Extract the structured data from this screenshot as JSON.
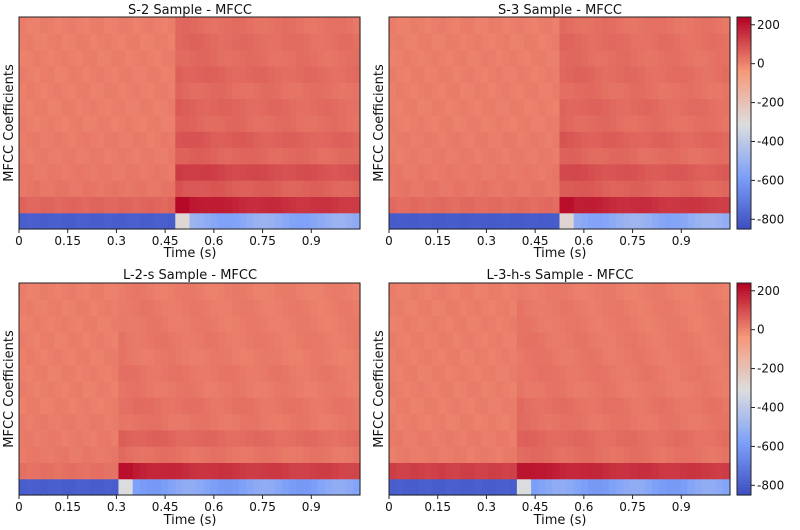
{
  "chart_data": [
    {
      "type": "heatmap",
      "title": "S-2 Sample - MFCC",
      "xlabel": "Time (s)",
      "ylabel": "MFCC Coefficients",
      "xlim": [
        0,
        1.05
      ],
      "xticks": [
        "0",
        "0.15",
        "0.3",
        "0.45",
        "0.6",
        "0.75",
        "0.9"
      ],
      "onset_s": 0.49,
      "rows": 13,
      "pre_onset_values": [
        -790,
        60,
        30,
        25,
        20,
        20,
        15,
        15,
        15,
        15,
        15,
        15,
        15
      ],
      "post_onset_values": [
        -530,
        210,
        90,
        140,
        70,
        90,
        60,
        70,
        55,
        70,
        55,
        60,
        50
      ]
    },
    {
      "type": "heatmap",
      "title": "S-3 Sample - MFCC",
      "xlabel": "Time (s)",
      "ylabel": "MFCC Coefficients",
      "xlim": [
        0,
        1.05
      ],
      "xticks": [
        "0",
        "0.15",
        "0.3",
        "0.45",
        "0.6",
        "0.75",
        "0.9"
      ],
      "onset_s": 0.52,
      "rows": 13,
      "pre_onset_values": [
        -800,
        50,
        30,
        25,
        20,
        20,
        15,
        15,
        15,
        15,
        15,
        15,
        15
      ],
      "post_onset_values": [
        -520,
        200,
        80,
        110,
        60,
        80,
        55,
        65,
        50,
        60,
        50,
        55,
        45
      ]
    },
    {
      "type": "heatmap",
      "title": "L-2-s Sample - MFCC",
      "xlabel": "Time (s)",
      "ylabel": "MFCC Coefficients",
      "xlim": [
        0,
        1.05
      ],
      "xticks": [
        "0",
        "0.15",
        "0.3",
        "0.45",
        "0.6",
        "0.75",
        "0.9"
      ],
      "onset_s": 0.3,
      "rows": 13,
      "pre_onset_values": [
        -790,
        40,
        25,
        20,
        20,
        15,
        15,
        15,
        15,
        15,
        15,
        15,
        15
      ],
      "post_onset_values": [
        -560,
        200,
        40,
        70,
        35,
        45,
        30,
        35,
        25,
        30,
        25,
        25,
        20
      ]
    },
    {
      "type": "heatmap",
      "title": "L-3-h-s Sample - MFCC",
      "xlabel": "Time (s)",
      "ylabel": "MFCC Coefficients",
      "xlim": [
        0,
        1.05
      ],
      "xticks": [
        "0",
        "0.15",
        "0.3",
        "0.45",
        "0.6",
        "0.75",
        "0.9"
      ],
      "onset_s": 0.39,
      "rows": 13,
      "pre_onset_values": [
        -790,
        130,
        20,
        20,
        15,
        15,
        15,
        15,
        15,
        15,
        15,
        15,
        15
      ],
      "post_onset_values": [
        -560,
        190,
        50,
        60,
        40,
        45,
        30,
        35,
        30,
        30,
        25,
        25,
        20
      ]
    }
  ],
  "colorbar": {
    "range": [
      -850,
      240
    ],
    "ticks": [
      "200",
      "0",
      "-200",
      "-400",
      "-600",
      "-800"
    ],
    "colormap": "coolwarm"
  }
}
